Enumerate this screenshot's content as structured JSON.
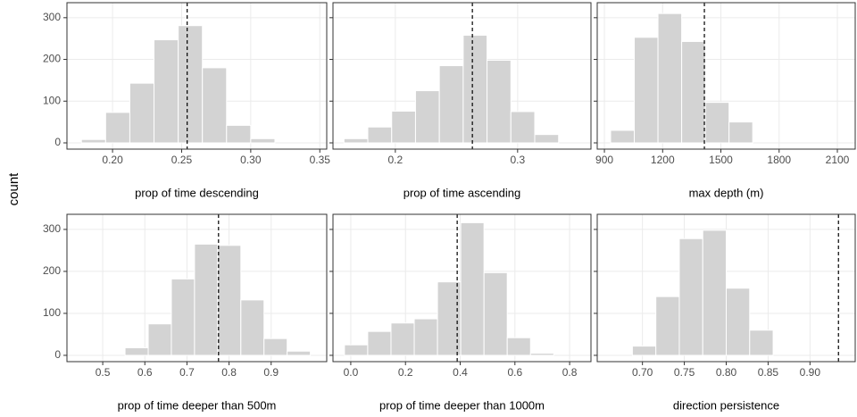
{
  "ylabel": "count",
  "chart_data": [
    {
      "type": "histogram",
      "xlabel": "prop of time descending",
      "color": "#d3d3d3",
      "bins": [
        0.1775,
        0.195,
        0.2125,
        0.23,
        0.2475,
        0.265,
        0.2825,
        0.3,
        0.3175
      ],
      "counts": [
        8,
        73,
        143,
        247,
        281,
        180,
        42,
        10
      ],
      "vline": 0.254,
      "xlim": [
        0.167,
        0.355
      ],
      "xticks": [
        {
          "value": 0.2,
          "label": "0.20"
        },
        0.25,
        {
          "value": 0.3,
          "label": "0.30"
        },
        0.35
      ],
      "ylim": [
        -15,
        336
      ],
      "yticks": [
        0,
        100,
        200,
        300
      ]
    },
    {
      "type": "histogram",
      "xlabel": "prop of time ascending",
      "color": "#d3d3d3",
      "bins": [
        0.158,
        0.1775,
        0.197,
        0.2165,
        0.236,
        0.2555,
        0.275,
        0.2945,
        0.314,
        0.3335
      ],
      "counts": [
        10,
        38,
        76,
        125,
        185,
        258,
        198,
        75,
        20
      ],
      "vline": 0.263,
      "xlim": [
        0.149,
        0.36
      ],
      "xticks": [
        0.2,
        0.3
      ],
      "ylim": [
        -15,
        336
      ],
      "yticks": [
        0,
        100,
        200,
        300
      ]
    },
    {
      "type": "histogram",
      "xlabel": "max depth (m)",
      "color": "#d3d3d3",
      "bins": [
        932,
        1054,
        1176,
        1298,
        1420,
        1542,
        1664
      ],
      "counts": [
        30,
        253,
        310,
        243,
        97,
        50
      ],
      "vline": 1415,
      "xlim": [
        863,
        2192
      ],
      "xticks": [
        900,
        1200,
        1500,
        1800,
        2100
      ],
      "ylim": [
        -15,
        336
      ],
      "yticks": [
        0,
        100,
        200,
        300
      ]
    },
    {
      "type": "histogram",
      "xlabel": "prop of time deeper than 500m",
      "color": "#d3d3d3",
      "bins": [
        0.553,
        0.608,
        0.663,
        0.718,
        0.773,
        0.828,
        0.883,
        0.938,
        0.993
      ],
      "counts": [
        18,
        75,
        182,
        265,
        262,
        132,
        40,
        10
      ],
      "vline": 0.775,
      "xlim": [
        0.415,
        1.032
      ],
      "xticks": [
        0.5,
        0.6,
        0.7,
        0.8,
        0.9
      ],
      "ylim": [
        -15,
        336
      ],
      "yticks": [
        0,
        100,
        200,
        300
      ]
    },
    {
      "type": "histogram",
      "xlabel": "prop of time deeper than 1000m",
      "color": "#d3d3d3",
      "bins": [
        -0.023,
        0.062,
        0.147,
        0.232,
        0.317,
        0.402,
        0.487,
        0.572,
        0.657,
        0.742
      ],
      "counts": [
        25,
        57,
        77,
        87,
        175,
        316,
        197,
        42,
        5
      ],
      "vline": 0.389,
      "xlim": [
        -0.065,
        0.878
      ],
      "xticks": [
        {
          "value": 0,
          "label": "0.0"
        },
        0.2,
        0.4,
        0.6,
        0.8
      ],
      "ylim": [
        -15,
        336
      ],
      "yticks": [
        0,
        100,
        200,
        300
      ]
    },
    {
      "type": "histogram",
      "xlabel": "direction persistence",
      "color": "#d3d3d3",
      "bins": [
        0.688,
        0.716,
        0.744,
        0.772,
        0.8,
        0.828,
        0.856
      ],
      "counts": [
        22,
        140,
        278,
        298,
        160,
        60
      ],
      "vline": 0.934,
      "xlim": [
        0.646,
        0.954
      ],
      "xticks": [
        {
          "value": 0.7,
          "label": "0.70"
        },
        0.75,
        {
          "value": 0.8,
          "label": "0.80"
        },
        0.85,
        {
          "value": 0.9,
          "label": "0.90"
        }
      ],
      "ylim": [
        -15,
        336
      ],
      "yticks": [
        0,
        100,
        200,
        300
      ]
    }
  ]
}
